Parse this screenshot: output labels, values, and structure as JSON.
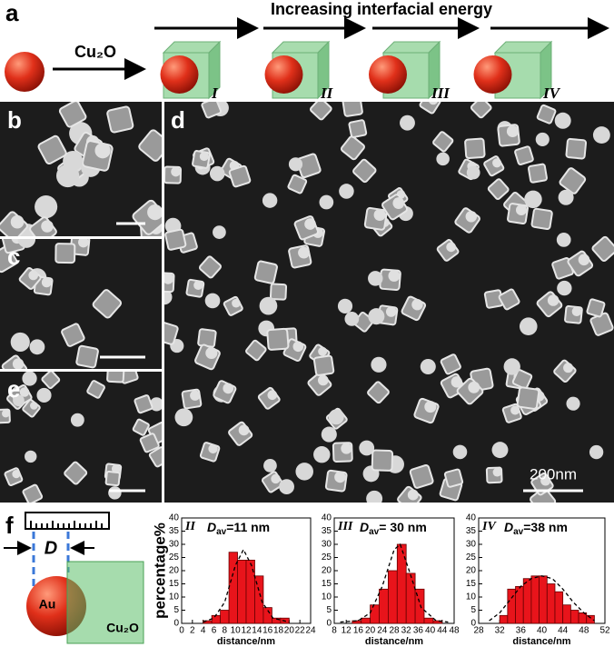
{
  "figure": {
    "panels": [
      "a",
      "b",
      "c",
      "d",
      "e",
      "f"
    ],
    "top_title": "Increasing interfacial energy",
    "reagent": "Cu₂O",
    "stages": [
      "I",
      "II",
      "III",
      "IV"
    ],
    "scale_label": "200nm",
    "schematic": {
      "D": "D",
      "Au": "Au",
      "shell": "Cu₂O"
    },
    "mean_symbol": "D",
    "mean_sub": "av"
  },
  "chart_data": [
    {
      "type": "histogram",
      "stage": "II",
      "mean_label": "=11 nm",
      "ylabel": "percentage%",
      "xlabel": "distance/nm",
      "xlim": [
        0,
        24
      ],
      "xticks": [
        0,
        2,
        4,
        6,
        8,
        10,
        12,
        14,
        16,
        18,
        20,
        22,
        24
      ],
      "ylim": [
        0,
        40
      ],
      "yticks": [
        0,
        5,
        10,
        15,
        20,
        25,
        30,
        35,
        40
      ],
      "color": "#e8141b",
      "bins": [
        4,
        5.6,
        7.2,
        8.8,
        10.4,
        12,
        13.6,
        15.2,
        16.8,
        18.4,
        20
      ],
      "values": [
        1,
        3,
        5,
        27,
        24,
        24,
        18,
        6,
        2,
        2
      ],
      "fit": {
        "x": [
          4,
          6,
          8,
          10,
          11.5,
          13,
          15,
          17,
          20
        ],
        "values": [
          0.5,
          2,
          8,
          22,
          28,
          22,
          8,
          2,
          0.5
        ]
      }
    },
    {
      "type": "histogram",
      "stage": "III",
      "mean_label": "= 30 nm",
      "xlabel": "distance/nm",
      "xlim": [
        8,
        48
      ],
      "xticks": [
        8,
        12,
        16,
        20,
        24,
        28,
        32,
        36,
        40,
        44,
        48
      ],
      "ylim": [
        0,
        40
      ],
      "yticks": [
        0,
        5,
        10,
        15,
        20,
        25,
        30,
        35,
        40
      ],
      "color": "#e8141b",
      "bins": [
        14,
        17,
        20,
        23,
        26,
        29,
        32,
        35,
        38,
        41,
        44
      ],
      "values": [
        1,
        2,
        7,
        13,
        20,
        30,
        19,
        13,
        2,
        1
      ],
      "fit": {
        "x": [
          10,
          16,
          20,
          24,
          28,
          30,
          33,
          37,
          42,
          46
        ],
        "values": [
          0.5,
          1,
          4,
          14,
          28,
          30,
          20,
          6,
          1,
          0.5
        ]
      }
    },
    {
      "type": "histogram",
      "stage": "IV",
      "mean_label": "=38 nm",
      "xlabel": "distance/nm",
      "xlim": [
        28,
        52
      ],
      "xticks": [
        28,
        32,
        36,
        40,
        44,
        48,
        52
      ],
      "ylim": [
        0,
        40
      ],
      "yticks": [
        0,
        5,
        10,
        15,
        20,
        25,
        30,
        35,
        40
      ],
      "color": "#e8141b",
      "bins": [
        32,
        33.5,
        35,
        36.5,
        38,
        39.5,
        41,
        42.5,
        44,
        45.5,
        47,
        48.5,
        50
      ],
      "values": [
        3,
        13,
        14,
        17,
        18,
        18,
        15,
        12,
        7,
        5,
        4,
        3
      ],
      "fit": {
        "x": [
          30,
          32,
          34,
          36,
          38,
          40,
          42,
          44,
          46,
          48,
          50
        ],
        "values": [
          1,
          4,
          9,
          14,
          17,
          18,
          17,
          13,
          8,
          4,
          1
        ]
      }
    }
  ]
}
